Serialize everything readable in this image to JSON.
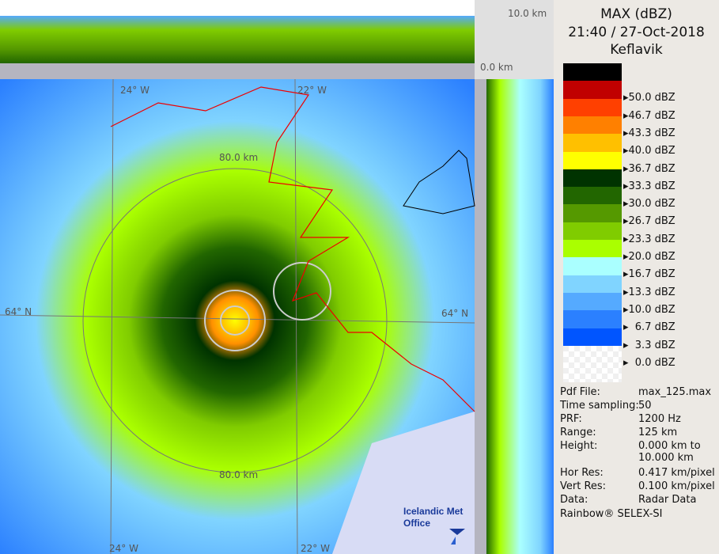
{
  "header": {
    "product": "MAX (dBZ)",
    "datetime": "21:40 / 27-Oct-2018",
    "site": "Keflavik"
  },
  "legend": [
    {
      "color": "#000000",
      "label": null
    },
    {
      "color": "#c00000",
      "label": "50.0 dBZ"
    },
    {
      "color": "#ff4000",
      "label": "46.7 dBZ"
    },
    {
      "color": "#ff8000",
      "label": "43.3 dBZ"
    },
    {
      "color": "#ffc000",
      "label": "40.0 dBZ"
    },
    {
      "color": "#ffff00",
      "label": "36.7 dBZ"
    },
    {
      "color": "#003300",
      "label": "33.3 dBZ"
    },
    {
      "color": "#226600",
      "label": "30.0 dBZ"
    },
    {
      "color": "#559900",
      "label": "26.7 dBZ"
    },
    {
      "color": "#80cc00",
      "label": "23.3 dBZ"
    },
    {
      "color": "#aaff00",
      "label": "20.0 dBZ"
    },
    {
      "color": "#aaffff",
      "label": "16.7 dBZ"
    },
    {
      "color": "#80d4ff",
      "label": "13.3 dBZ"
    },
    {
      "color": "#55aaff",
      "label": "10.0 dBZ"
    },
    {
      "color": "#2b80ff",
      "label": "  6.7 dBZ"
    },
    {
      "color": "#0055ff",
      "label": "  3.3 dBZ"
    },
    {
      "color": "#ffffff",
      "label": "  0.0 dBZ"
    }
  ],
  "info": [
    {
      "key": "Pdf File:",
      "value": "max_125.max"
    },
    {
      "key": "Time sampling:",
      "value": "50"
    },
    {
      "key": "PRF:",
      "value": "1200 Hz"
    },
    {
      "key": "Range:",
      "value": "125 km"
    },
    {
      "key": "Height:",
      "value": "0.000 km to\n10.000 km"
    },
    {
      "key": "Hor Res:",
      "value": "0.417 km/pixel"
    },
    {
      "key": "Vert Res:",
      "value": "0.100 km/pixel"
    },
    {
      "key": "Data:",
      "value": "Radar Data"
    }
  ],
  "footer": "Rainbow® SELEX-SI",
  "map": {
    "height_top": "10.0 km",
    "height_bottom": "0.0 km",
    "lon_left_top": "24° W",
    "lon_right_top": "22° W",
    "lon_left_bottom": "24° W",
    "lon_right_bottom": "22° W",
    "lat_left": "64° N",
    "lat_right": "64° N",
    "ring_top": "80.0 km",
    "ring_bottom": "80.0 km",
    "logo": "Icelandic Met\nOffice"
  }
}
